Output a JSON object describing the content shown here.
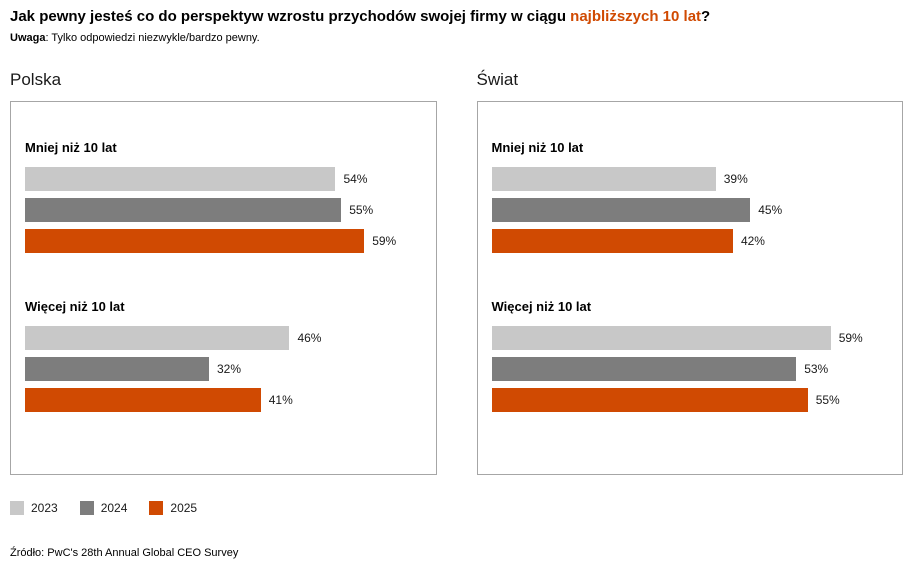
{
  "title": {
    "main": "Jak pewny jesteś co do perspektyw wzrostu przychodów swojej firmy w ciągu ",
    "highlight": "najbliższych 10 lat",
    "suffix": "?"
  },
  "note": {
    "bold": "Uwaga",
    "rest": ": Tylko odpowiedzi niezwykle/bardzo pewny."
  },
  "colors": {
    "bar_2023": "#c8c8c8",
    "bar_2024": "#7d7d7d",
    "bar_2025": "#d04a02",
    "highlight": "#d04a02",
    "panel_border": "#a6a6a6"
  },
  "legend": [
    {
      "label": "2023",
      "color": "#c8c8c8"
    },
    {
      "label": "2024",
      "color": "#7d7d7d"
    },
    {
      "label": "2025",
      "color": "#d04a02"
    }
  ],
  "source": "Źródło: PwC's 28th Annual Global CEO Survey",
  "chart_data": [
    {
      "type": "bar",
      "title": "Polska",
      "orientation": "horizontal",
      "unit": "%",
      "categories": [
        "2023",
        "2024",
        "2025"
      ],
      "groups": [
        {
          "label": "Mniej niż 10 lat",
          "values": [
            54,
            55,
            59
          ]
        },
        {
          "label": "Więcej niż 10 lat",
          "values": [
            46,
            32,
            41
          ]
        }
      ],
      "xlim": [
        0,
        69
      ],
      "value_labels": true,
      "grid": false,
      "legend_position": "bottom-left"
    },
    {
      "type": "bar",
      "title": "Świat",
      "orientation": "horizontal",
      "unit": "%",
      "categories": [
        "2023",
        "2024",
        "2025"
      ],
      "groups": [
        {
          "label": "Mniej niż 10 lat",
          "values": [
            39,
            45,
            42
          ]
        },
        {
          "label": "Więcej niż 10 lat",
          "values": [
            59,
            53,
            55
          ]
        }
      ],
      "xlim": [
        0,
        69
      ],
      "value_labels": true,
      "grid": false,
      "legend_position": "bottom-left"
    }
  ]
}
